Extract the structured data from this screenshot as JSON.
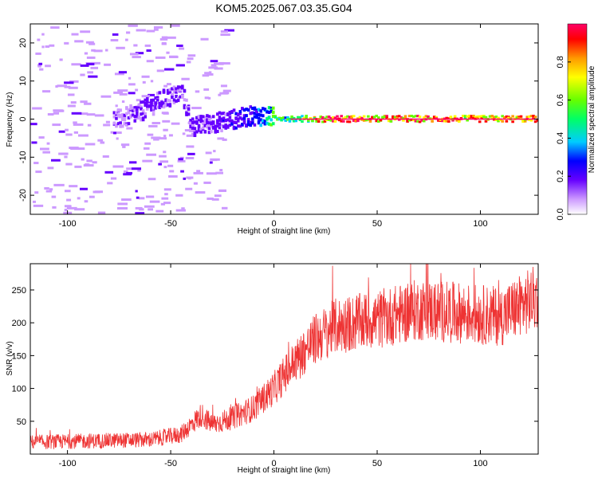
{
  "chart_data": [
    {
      "type": "heatmap",
      "title": "KOM5.2025.067.03.35.G04",
      "xlabel": "Height of straight line (km)",
      "ylabel": "Frequency (Hz)",
      "xlim": [
        -118,
        128
      ],
      "ylim": [
        -25,
        25
      ],
      "xticks": [
        -100,
        -50,
        0,
        50,
        100
      ],
      "yticks": [
        -20,
        -10,
        0,
        10,
        20
      ],
      "colorbar": {
        "label": "Normalized spectral amplitude",
        "range": [
          0,
          1
        ],
        "ticks": [
          "0.0",
          "0.2",
          "0.4",
          "0.6",
          "0.8"
        ],
        "colors": [
          "#ffffff",
          "#cc99ff",
          "#6600ff",
          "#0000ff",
          "#00ccff",
          "#00ff66",
          "#66ff00",
          "#ffff00",
          "#ff9900",
          "#ff0000",
          "#ff0066"
        ]
      },
      "ridge": [
        {
          "x": -75,
          "y": 0,
          "amp": 0.15
        },
        {
          "x": -65,
          "y": 2,
          "amp": 0.2
        },
        {
          "x": -55,
          "y": 5,
          "amp": 0.2
        },
        {
          "x": -45,
          "y": 7,
          "amp": 0.2
        },
        {
          "x": -40,
          "y": -2,
          "amp": 0.2
        },
        {
          "x": -30,
          "y": -1,
          "amp": 0.22
        },
        {
          "x": -20,
          "y": 0,
          "amp": 0.25
        },
        {
          "x": -10,
          "y": 1,
          "amp": 0.3
        },
        {
          "x": 0,
          "y": 0.5,
          "amp": 0.6
        },
        {
          "x": 10,
          "y": 0,
          "amp": 0.5
        },
        {
          "x": 25,
          "y": 0,
          "amp": 0.95
        },
        {
          "x": 50,
          "y": 0,
          "amp": 0.95
        },
        {
          "x": 90,
          "y": 0,
          "amp": 0.9
        },
        {
          "x": 128,
          "y": 0,
          "amp": 0.9
        }
      ]
    },
    {
      "type": "line",
      "xlabel": "Height of straight line (km)",
      "ylabel": "SNR (v/v)",
      "xlim": [
        -118,
        128
      ],
      "ylim": [
        0,
        290
      ],
      "xticks": [
        -100,
        -50,
        0,
        50,
        100
      ],
      "yticks": [
        50,
        100,
        150,
        200,
        250
      ],
      "line_color": "#ee3333",
      "trend": [
        {
          "x": -118,
          "y": 18
        },
        {
          "x": -60,
          "y": 22
        },
        {
          "x": -45,
          "y": 30
        },
        {
          "x": -40,
          "y": 45
        },
        {
          "x": -35,
          "y": 60
        },
        {
          "x": -30,
          "y": 45
        },
        {
          "x": -20,
          "y": 55
        },
        {
          "x": -10,
          "y": 70
        },
        {
          "x": 0,
          "y": 100
        },
        {
          "x": 10,
          "y": 140
        },
        {
          "x": 20,
          "y": 175
        },
        {
          "x": 30,
          "y": 195
        },
        {
          "x": 50,
          "y": 205
        },
        {
          "x": 70,
          "y": 220
        },
        {
          "x": 90,
          "y": 215
        },
        {
          "x": 110,
          "y": 210
        },
        {
          "x": 128,
          "y": 240
        }
      ]
    }
  ]
}
